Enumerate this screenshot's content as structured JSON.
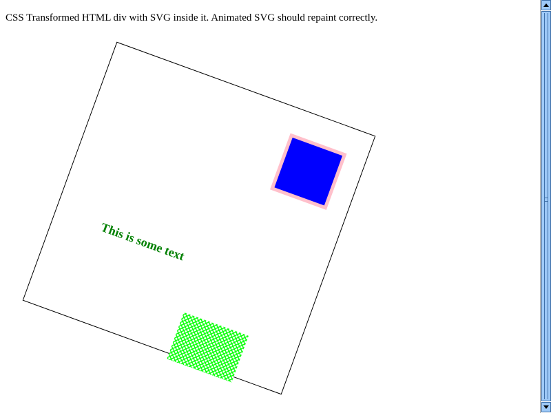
{
  "caption": "CSS Transformed HTML div with SVG inside it. Animated SVG should repaint correctly.",
  "svg": {
    "text": "This is some text",
    "text_color": "#008000",
    "square_fill": "#0000ff",
    "square_stroke": "#ffc0cb",
    "pattern_color": "#00ff00",
    "box_border_color": "#000000"
  },
  "scrollbar": {
    "up_icon": "arrow-up-icon",
    "down_icon": "arrow-down-icon",
    "color": "#9ec9f7"
  }
}
